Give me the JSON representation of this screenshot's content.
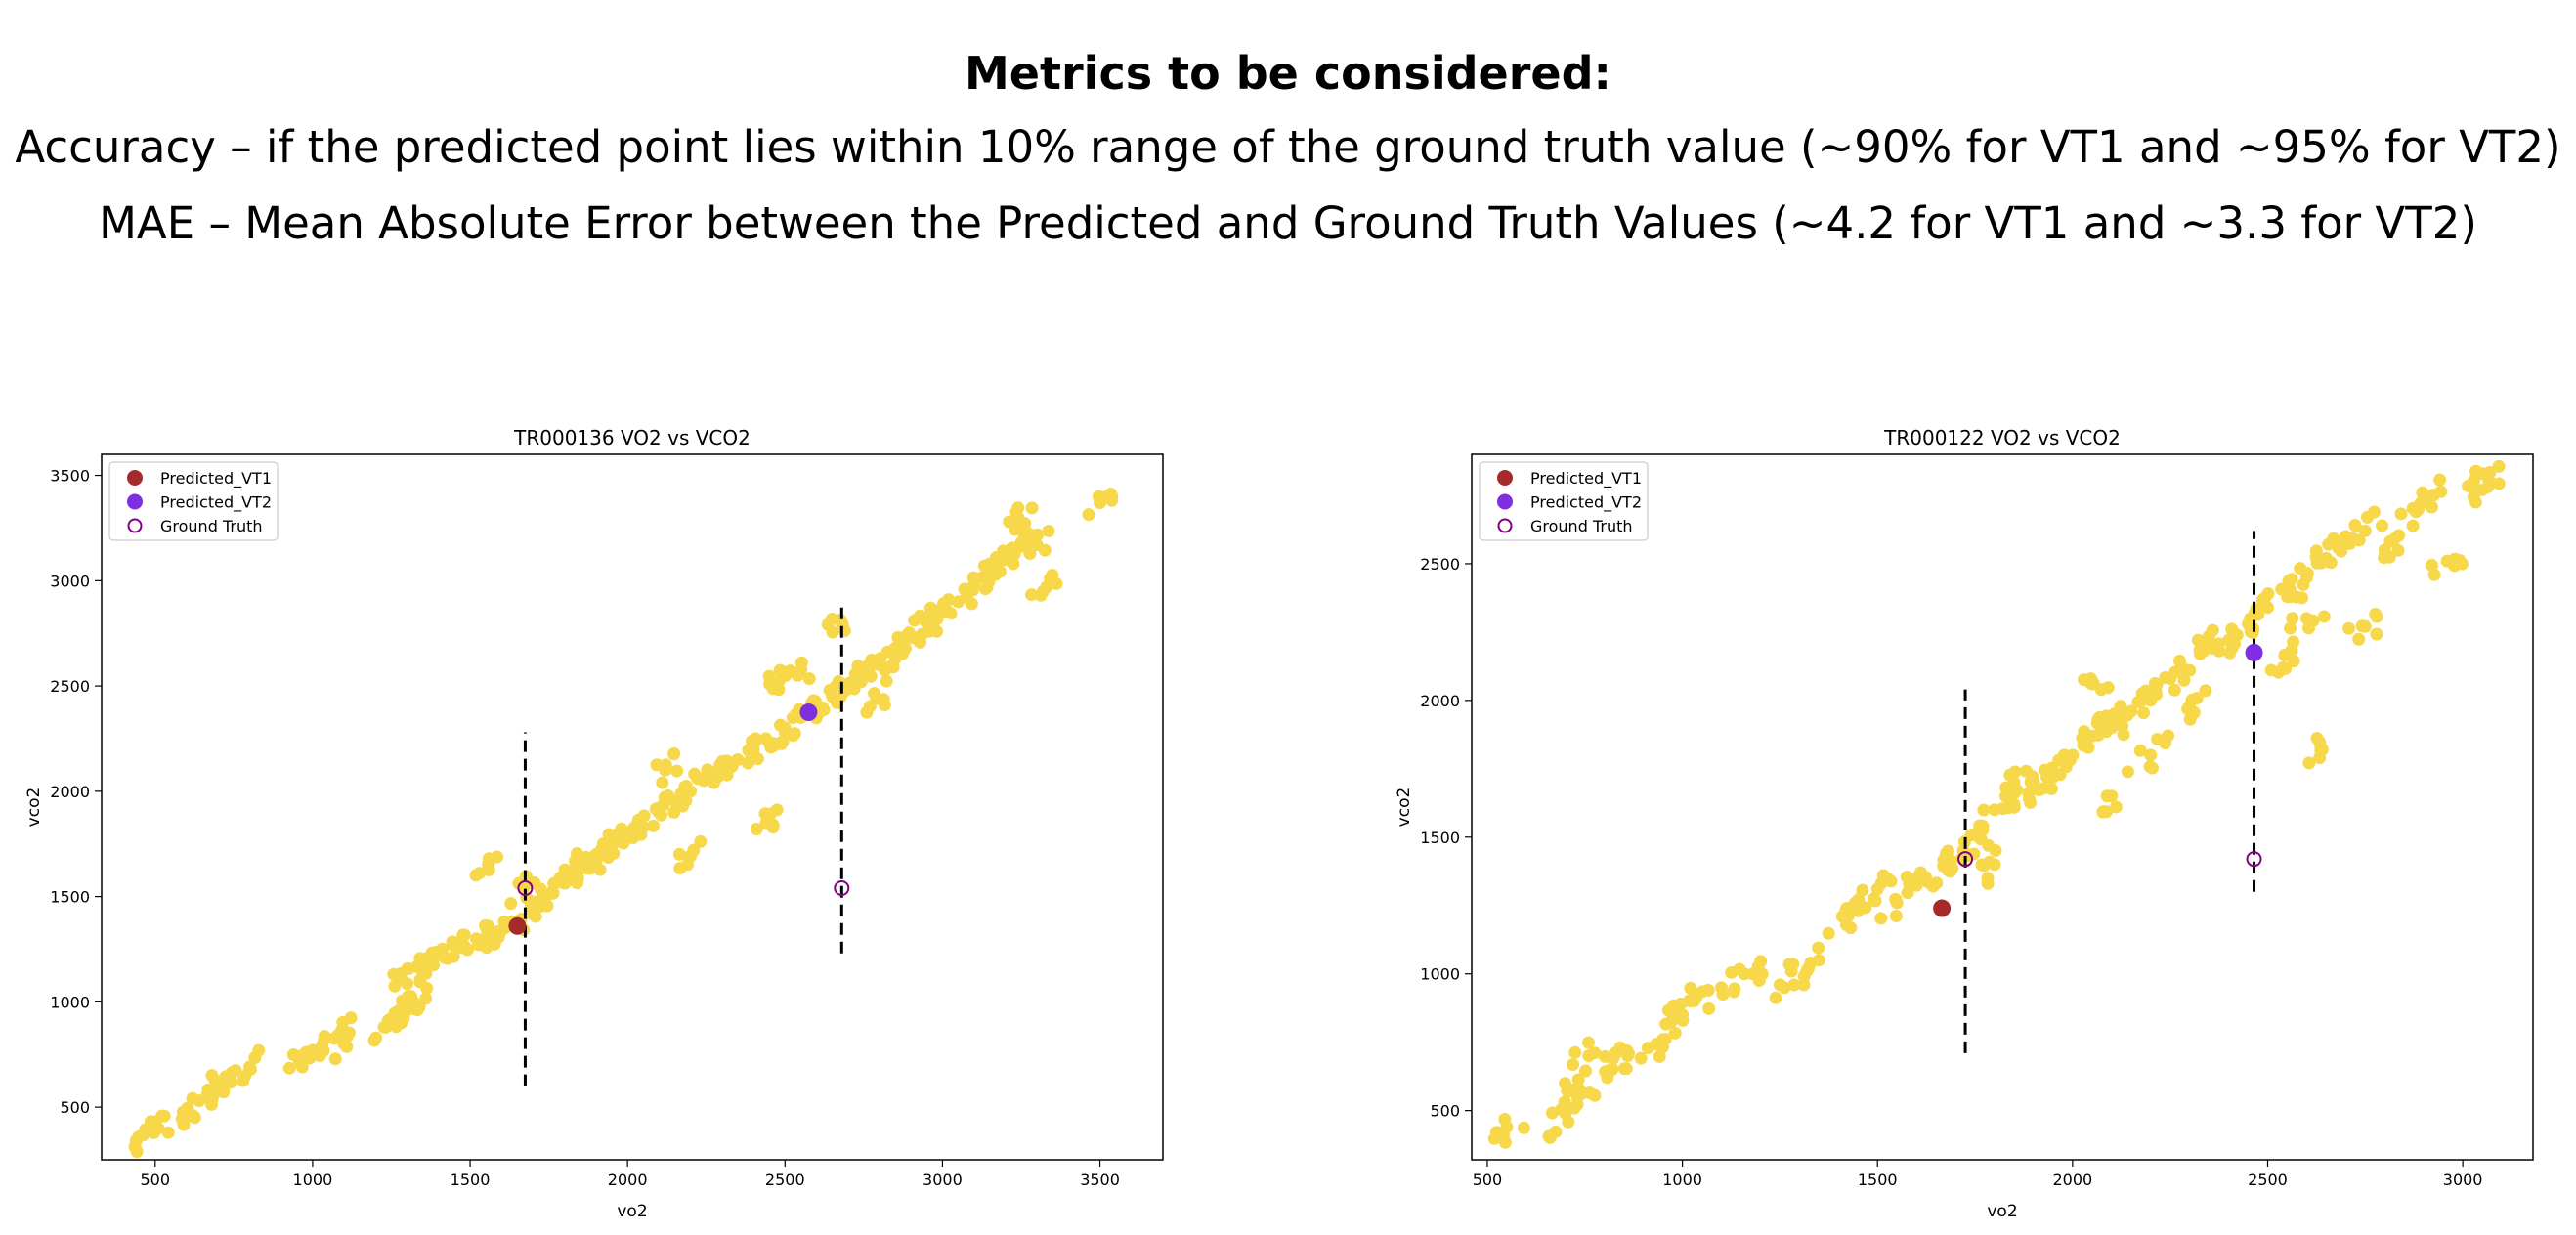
{
  "header": {
    "title": "Metrics to be considered:",
    "line1": "Accuracy – if the predicted point lies within 10% range of the ground truth value (~90% for VT1 and ~95% for VT2)",
    "line2": "MAE – Mean Absolute Error between the Predicted and Ground Truth Values (~4.2 for VT1 and ~3.3 for VT2)"
  },
  "colors": {
    "scatter": "#f7d84a",
    "predicted_vt1": "#a52a2a",
    "predicted_vt2": "#7f2fe0",
    "ground_truth_edge": "#800080",
    "threshold_line": "#000000"
  },
  "chart_data": [
    {
      "type": "scatter",
      "title": "TR000136 VO2 vs VCO2",
      "xlabel": "vo2",
      "ylabel": "vco2",
      "xlim": [
        330,
        3700
      ],
      "ylim": [
        250,
        3600
      ],
      "xticks": [
        500,
        1000,
        1500,
        2000,
        2500,
        3000,
        3500
      ],
      "yticks": [
        500,
        1000,
        1500,
        2000,
        2500,
        3000,
        3500
      ],
      "legend_position": "top-left",
      "grid": false,
      "legend": [
        "Predicted_VT1",
        "Predicted_VT2",
        "Ground Truth"
      ],
      "series": [
        {
          "name": "vo2 vs vco2 samples",
          "kind": "cloud",
          "points": [
            [
              440,
              340
            ],
            [
              510,
              400
            ],
            [
              620,
              460
            ],
            [
              640,
              530
            ],
            [
              680,
              560
            ],
            [
              700,
              620
            ],
            [
              800,
              690
            ],
            [
              960,
              720
            ],
            [
              1000,
              770
            ],
            [
              1080,
              840
            ],
            [
              1100,
              800
            ],
            [
              1240,
              910
            ],
            [
              1290,
              940
            ],
            [
              1300,
              980
            ],
            [
              1320,
              1000
            ],
            [
              1280,
              1120
            ],
            [
              1340,
              1160
            ],
            [
              1380,
              1180
            ],
            [
              1420,
              1210
            ],
            [
              1470,
              1260
            ],
            [
              1520,
              1300
            ],
            [
              1560,
              1320
            ],
            [
              1610,
              1350
            ],
            [
              1700,
              1420
            ],
            [
              1720,
              1470
            ],
            [
              1760,
              1520
            ],
            [
              1800,
              1570
            ],
            [
              1830,
              1620
            ],
            [
              1870,
              1680
            ],
            [
              1900,
              1700
            ],
            [
              1950,
              1750
            ],
            [
              2000,
              1780
            ],
            [
              2050,
              1830
            ],
            [
              2100,
              1900
            ],
            [
              2150,
              1950
            ],
            [
              2200,
              2000
            ],
            [
              2250,
              2070
            ],
            [
              2300,
              2100
            ],
            [
              2350,
              2150
            ],
            [
              2400,
              2200
            ],
            [
              2450,
              2230
            ],
            [
              2500,
              2280
            ],
            [
              2550,
              2350
            ],
            [
              2600,
              2400
            ],
            [
              2650,
              2450
            ],
            [
              2700,
              2500
            ],
            [
              2750,
              2560
            ],
            [
              2800,
              2600
            ],
            [
              2850,
              2680
            ],
            [
              2900,
              2730
            ],
            [
              2950,
              2800
            ],
            [
              3000,
              2850
            ],
            [
              3050,
              2900
            ],
            [
              3100,
              2980
            ],
            [
              3150,
              3050
            ],
            [
              3200,
              3100
            ],
            [
              3250,
              3180
            ],
            [
              3300,
              3170
            ],
            [
              3320,
              2950
            ],
            [
              3500,
              3370
            ],
            [
              3240,
              3300
            ],
            [
              2540,
              2550
            ],
            [
              2480,
              2520
            ],
            [
              2440,
              1850
            ],
            [
              2210,
              1720
            ],
            [
              1560,
              1680
            ],
            [
              1670,
              1540
            ],
            [
              1900,
              1660
            ],
            [
              2120,
              2100
            ],
            [
              2680,
              2800
            ],
            [
              2790,
              2440
            ],
            [
              2960,
              2760
            ]
          ]
        },
        {
          "name": "Predicted_VT1",
          "points": [
            [
              1650,
              1360
            ]
          ]
        },
        {
          "name": "Predicted_VT2",
          "points": [
            [
              2575,
              2375
            ]
          ]
        },
        {
          "name": "Ground Truth",
          "points": [
            [
              1675,
              1540
            ],
            [
              2680,
              1540
            ]
          ]
        }
      ],
      "vlines": [
        {
          "x": 1675,
          "ymin": 600,
          "ymax": 2280
        },
        {
          "x": 2680,
          "ymin": 1230,
          "ymax": 2900
        }
      ]
    },
    {
      "type": "scatter",
      "title": "TR000122 VO2 vs VCO2",
      "xlabel": "vo2",
      "ylabel": "vco2",
      "xlim": [
        460,
        3180
      ],
      "ylim": [
        320,
        2900
      ],
      "xticks": [
        500,
        1000,
        1500,
        2000,
        2500,
        3000
      ],
      "yticks": [
        500,
        1000,
        1500,
        2000,
        2500
      ],
      "legend_position": "top-left",
      "grid": false,
      "legend": [
        "Predicted_VT1",
        "Predicted_VT2",
        "Ground Truth"
      ],
      "series": [
        {
          "name": "vo2 vs vco2 samples",
          "kind": "cloud",
          "points": [
            [
              550,
              440
            ],
            [
              700,
              490
            ],
            [
              710,
              570
            ],
            [
              740,
              560
            ],
            [
              760,
              700
            ],
            [
              820,
              650
            ],
            [
              860,
              700
            ],
            [
              950,
              760
            ],
            [
              1000,
              850
            ],
            [
              1020,
              900
            ],
            [
              1100,
              950
            ],
            [
              1180,
              1000
            ],
            [
              1250,
              960
            ],
            [
              1350,
              1050
            ],
            [
              1410,
              1210
            ],
            [
              1450,
              1230
            ],
            [
              1500,
              1310
            ],
            [
              1550,
              1260
            ],
            [
              1600,
              1350
            ],
            [
              1680,
              1380
            ],
            [
              1720,
              1450
            ],
            [
              1760,
              1500
            ],
            [
              1800,
              1600
            ],
            [
              1850,
              1620
            ],
            [
              1900,
              1700
            ],
            [
              1950,
              1730
            ],
            [
              2000,
              1800
            ],
            [
              2050,
              1870
            ],
            [
              2100,
              1900
            ],
            [
              2150,
              1960
            ],
            [
              2200,
              2000
            ],
            [
              2250,
              2080
            ],
            [
              2300,
              2110
            ],
            [
              2350,
              2200
            ],
            [
              2400,
              2220
            ],
            [
              2450,
              2280
            ],
            [
              2500,
              2340
            ],
            [
              2550,
              2380
            ],
            [
              2600,
              2450
            ],
            [
              2650,
              2520
            ],
            [
              2700,
              2600
            ],
            [
              2750,
              2620
            ],
            [
              2800,
              2550
            ],
            [
              2880,
              2690
            ],
            [
              2900,
              2740
            ],
            [
              2960,
              2510
            ],
            [
              3050,
              2830
            ],
            [
              3050,
              2770
            ],
            [
              2640,
              1820
            ],
            [
              2540,
              2120
            ],
            [
              2200,
              1800
            ],
            [
              2100,
              1650
            ],
            [
              1800,
              1400
            ],
            [
              1850,
              1700
            ],
            [
              2050,
              2060
            ],
            [
              2300,
              1980
            ],
            [
              2600,
              2300
            ],
            [
              2750,
              2270
            ]
          ]
        },
        {
          "name": "Predicted_VT1",
          "points": [
            [
              1665,
              1240
            ]
          ]
        },
        {
          "name": "Predicted_VT2",
          "points": [
            [
              2465,
              2175
            ]
          ]
        },
        {
          "name": "Ground Truth",
          "points": [
            [
              1725,
              1420
            ],
            [
              2465,
              1420
            ]
          ]
        }
      ],
      "vlines": [
        {
          "x": 1725,
          "ymin": 710,
          "ymax": 2040
        },
        {
          "x": 2465,
          "ymin": 1300,
          "ymax": 2620
        }
      ]
    }
  ]
}
